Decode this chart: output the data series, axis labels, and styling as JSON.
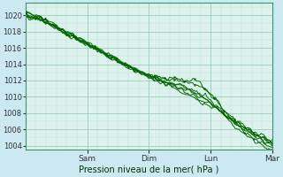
{
  "xlabel": "Pression niveau de la mer( hPa )",
  "bg_color": "#cce8f0",
  "plot_bg_color": "#ddf2ec",
  "grid_color_major": "#99ccbb",
  "grid_color_minor": "#bbddd5",
  "line_color": "#006600",
  "ylim": [
    1003.5,
    1021.5
  ],
  "yticks": [
    1004,
    1006,
    1008,
    1010,
    1012,
    1014,
    1016,
    1018,
    1020
  ],
  "day_labels": [
    "Sam",
    "Dim",
    "Lun",
    "Mar"
  ],
  "day_positions": [
    1,
    2,
    3,
    4
  ]
}
